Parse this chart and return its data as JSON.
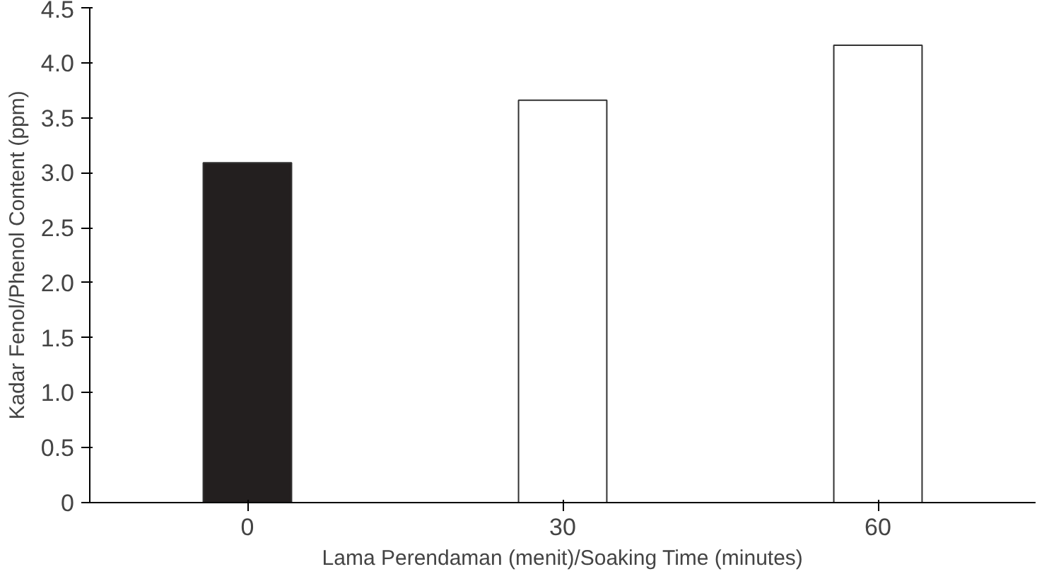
{
  "chart_data": {
    "type": "bar",
    "xlabel": "Lama Perendaman (menit)/Soaking Time (minutes)",
    "ylabel": "Kadar Fenol/Phenol Content (ppm)",
    "categories": [
      "0",
      "30",
      "60"
    ],
    "values": [
      3.09,
      3.66,
      4.16
    ],
    "colors": [
      "#231f1f",
      "#ffffff",
      "#ffffff"
    ],
    "ylim": [
      0,
      4.5
    ],
    "yticks": [
      0,
      0.5,
      {
        "value": 1,
        "label": "1.0"
      },
      1.5,
      {
        "value": 2,
        "label": "2.0"
      },
      2.5,
      {
        "value": 3,
        "label": "3.0"
      },
      3.5,
      {
        "value": 4,
        "label": "4.0"
      },
      4.5
    ],
    "grid": false
  }
}
